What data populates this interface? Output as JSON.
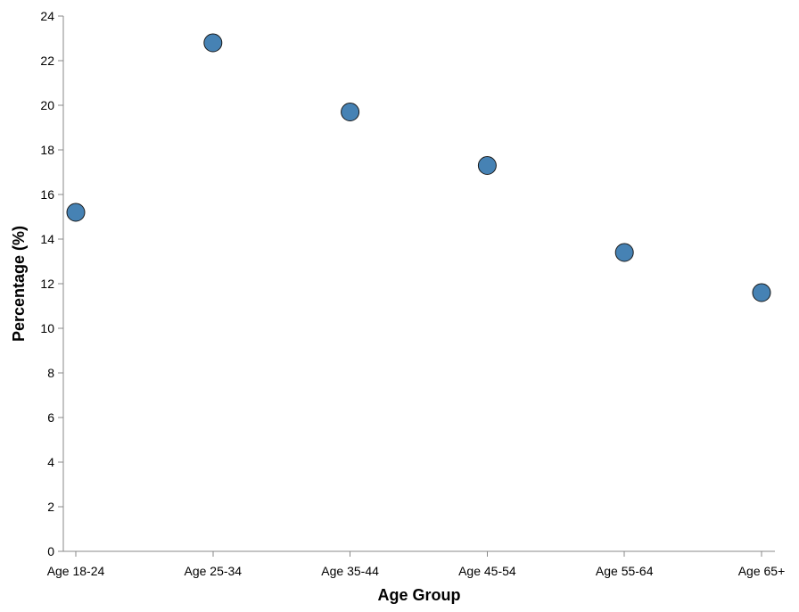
{
  "chart_data": {
    "type": "scatter",
    "categories": [
      "Age 18-24",
      "Age 25-34",
      "Age 35-44",
      "Age 45-54",
      "Age 55-64",
      "Age 65+"
    ],
    "values": [
      15.2,
      22.8,
      19.7,
      17.3,
      13.4,
      11.6
    ],
    "xlabel": "Age Group",
    "ylabel": "Percentage (%)",
    "ylim": [
      0,
      24
    ],
    "yticks": [
      0,
      2,
      4,
      6,
      8,
      10,
      12,
      14,
      16,
      18,
      20,
      22,
      24
    ],
    "grid": false,
    "legend": "none",
    "point_color": "#4682b4",
    "point_stroke": "#1a1a1a"
  }
}
